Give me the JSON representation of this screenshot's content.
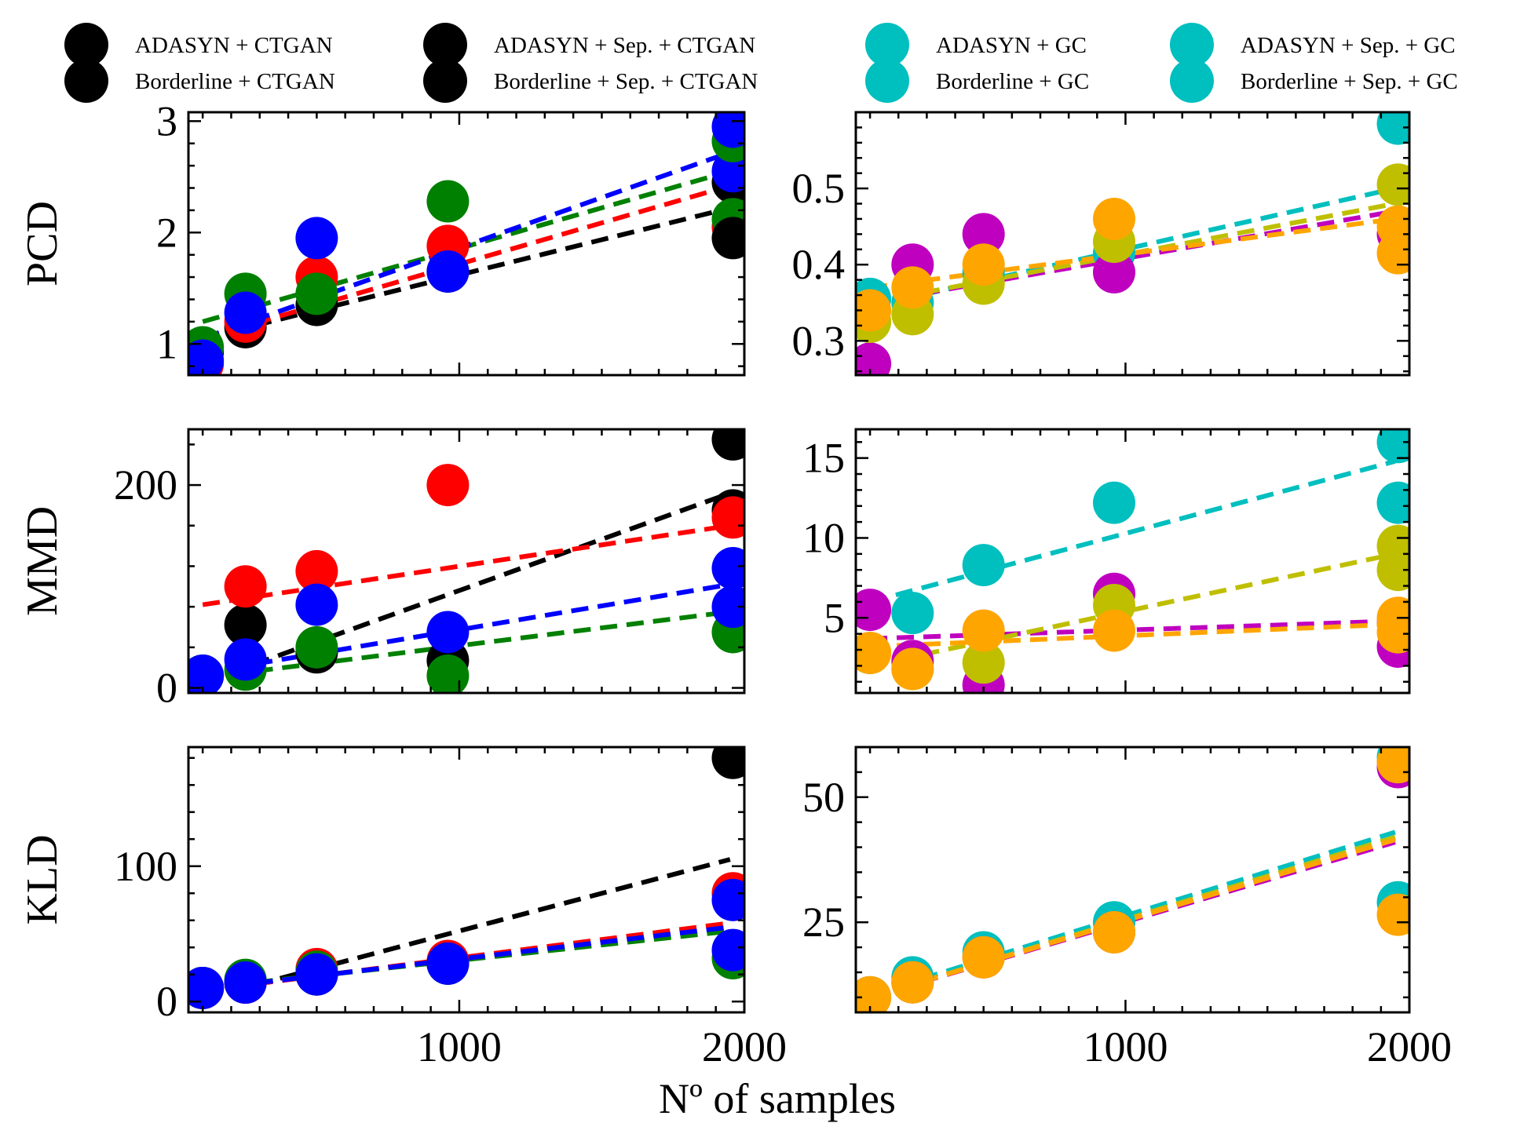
{
  "figure": {
    "xlabel": "Nº of samples"
  },
  "legend": [
    {
      "label": "ADASYN + CTGAN",
      "color": "#000000"
    },
    {
      "label": "Borderline + CTGAN",
      "color": "#000000"
    },
    {
      "label": "ADASYN + Sep. + CTGAN",
      "color": "#000000"
    },
    {
      "label": "Borderline + Sep. + CTGAN",
      "color": "#000000"
    },
    {
      "label": "ADASYN + GC",
      "color": "#00bfbf"
    },
    {
      "label": "Borderline + GC",
      "color": "#00bfbf"
    },
    {
      "label": "ADASYN + Sep. + GC",
      "color": "#00bfbf"
    },
    {
      "label": "Borderline + Sep. + GC",
      "color": "#00bfbf"
    }
  ],
  "chart_data": [
    {
      "id": "pcd_ctgan",
      "type": "scatter",
      "ylabel": "PCD",
      "xlim": [
        50,
        2000
      ],
      "ylim": [
        0.72,
        3.08
      ],
      "xticks": [
        1000,
        2000
      ],
      "xticklabels": [
        "",
        ""
      ],
      "yticks": [
        1,
        2,
        3
      ],
      "yticklabels": [
        "1",
        "2",
        "3"
      ],
      "grid": false,
      "series": [
        {
          "color": "#000000",
          "x": [
            100,
            250,
            500,
            1000,
            2000
          ],
          "y": [
            0.93,
            1.15,
            1.35,
            1.65,
            2.45
          ],
          "trend": {
            "x": [
              100,
              1950
            ],
            "y": [
              1.05,
              2.22
            ]
          }
        },
        {
          "color": "#ff0000",
          "x": [
            100,
            250,
            500,
            1000,
            2000
          ],
          "y": [
            0.82,
            1.2,
            1.6,
            1.88,
            2.05
          ],
          "trend": {
            "x": [
              100,
              1950
            ],
            "y": [
              1.05,
              2.42
            ]
          }
        },
        {
          "color": "#008000",
          "x": [
            100,
            250,
            500,
            1000,
            2000
          ],
          "y": [
            0.97,
            1.45,
            1.45,
            2.28,
            2.12
          ],
          "trend": {
            "x": [
              100,
              1950
            ],
            "y": [
              1.2,
              2.55
            ]
          }
        },
        {
          "color": "#0000ff",
          "x": [
            100,
            250,
            500,
            1000,
            2000
          ],
          "y": [
            0.85,
            1.28,
            1.95,
            1.65,
            2.55
          ],
          "trend": {
            "x": [
              100,
              1950
            ],
            "y": [
              1.05,
              2.72
            ]
          }
        }
      ],
      "extra_points": [
        {
          "color": "#000000",
          "x": 2000,
          "y": 1.95
        },
        {
          "color": "#008000",
          "x": 2000,
          "y": 2.82
        },
        {
          "color": "#0000ff",
          "x": 2000,
          "y": 2.95
        }
      ]
    },
    {
      "id": "pcd_gc",
      "type": "scatter",
      "ylabel": "",
      "xlim": [
        50,
        2000
      ],
      "ylim": [
        0.255,
        0.6
      ],
      "xticks": [
        1000,
        2000
      ],
      "xticklabels": [
        "",
        ""
      ],
      "yticks": [
        0.3,
        0.4,
        0.5
      ],
      "yticklabels": [
        "0.3",
        "0.4",
        "0.5"
      ],
      "grid": false,
      "series": [
        {
          "color": "#00bfbf",
          "x": [
            100,
            250,
            500,
            1000,
            2000
          ],
          "y": [
            0.355,
            0.35,
            0.39,
            0.415,
            0.585
          ],
          "trend": {
            "x": [
              100,
              1950
            ],
            "y": [
              0.345,
              0.5
            ]
          }
        },
        {
          "color": "#bf00bf",
          "x": [
            100,
            250,
            500,
            1000,
            2000
          ],
          "y": [
            0.27,
            0.4,
            0.44,
            0.39,
            0.44
          ],
          "trend": {
            "x": [
              100,
              1950
            ],
            "y": [
              0.35,
              0.47
            ]
          }
        },
        {
          "color": "#bfbf00",
          "x": [
            100,
            250,
            500,
            1000,
            2000
          ],
          "y": [
            0.325,
            0.335,
            0.375,
            0.43,
            0.505
          ],
          "trend": {
            "x": [
              100,
              1950
            ],
            "y": [
              0.35,
              0.48
            ]
          }
        },
        {
          "color": "#ffa500",
          "x": [
            100,
            250,
            500,
            1000,
            2000
          ],
          "y": [
            0.34,
            0.37,
            0.4,
            0.46,
            0.415
          ],
          "trend": {
            "x": [
              100,
              1950
            ],
            "y": [
              0.37,
              0.46
            ]
          }
        }
      ],
      "extra_points": [
        {
          "color": "#ffa500",
          "x": 2000,
          "y": 0.45
        }
      ]
    },
    {
      "id": "mmd_ctgan",
      "type": "scatter",
      "ylabel": "MMD",
      "xlim": [
        50,
        2000
      ],
      "ylim": [
        -5,
        255
      ],
      "xticks": [
        1000,
        2000
      ],
      "xticklabels": [
        "",
        ""
      ],
      "yticks": [
        0,
        200
      ],
      "yticklabels": [
        "0",
        "200"
      ],
      "grid": false,
      "series": [
        {
          "color": "#000000",
          "x": [
            100,
            250,
            500,
            1000,
            2000
          ],
          "y": [
            12,
            62,
            35,
            27,
            175
          ],
          "trend": {
            "x": [
              100,
              1950
            ],
            "y": [
              5,
              192
            ]
          }
        },
        {
          "color": "#ff0000",
          "x": [
            250,
            500,
            1000,
            2000
          ],
          "y": [
            100,
            115,
            200,
            168
          ],
          "trend": {
            "x": [
              100,
              1950
            ],
            "y": [
              82,
              160
            ]
          }
        },
        {
          "color": "#008000",
          "x": [
            100,
            250,
            500,
            1000,
            2000
          ],
          "y": [
            12,
            18,
            40,
            12,
            55
          ],
          "trend": {
            "x": [
              100,
              1950
            ],
            "y": [
              10,
              75
            ]
          }
        },
        {
          "color": "#0000ff",
          "x": [
            100,
            250,
            500,
            1000,
            2000
          ],
          "y": [
            12,
            28,
            82,
            55,
            118
          ],
          "trend": {
            "x": [
              100,
              1950
            ],
            "y": [
              15,
              102
            ]
          }
        }
      ],
      "extra_points": [
        {
          "color": "#000000",
          "x": 2000,
          "y": 245
        },
        {
          "color": "#0000ff",
          "x": 2000,
          "y": 80
        }
      ]
    },
    {
      "id": "mmd_gc",
      "type": "scatter",
      "ylabel": "",
      "xlim": [
        50,
        2000
      ],
      "ylim": [
        0.3,
        16.8
      ],
      "xticks": [
        1000,
        2000
      ],
      "xticklabels": [
        "",
        ""
      ],
      "yticks": [
        5,
        10,
        15
      ],
      "yticklabels": [
        "5",
        "10",
        "15"
      ],
      "grid": false,
      "series": [
        {
          "color": "#00bfbf",
          "x": [
            250,
            500,
            1000,
            2000
          ],
          "y": [
            5.3,
            8.3,
            12.2,
            16
          ],
          "trend": {
            "x": [
              100,
              1950
            ],
            "y": [
              6,
              14.8
            ]
          }
        },
        {
          "color": "#bf00bf",
          "x": [
            100,
            250,
            500,
            1000,
            2000
          ],
          "y": [
            5.5,
            2.3,
            0.8,
            6.5,
            3.2
          ],
          "trend": {
            "x": [
              100,
              1950
            ],
            "y": [
              3.7,
              4.8
            ]
          }
        },
        {
          "color": "#bfbf00",
          "x": [
            100,
            250,
            500,
            1000,
            2000
          ],
          "y": [
            2.8,
            1.8,
            2.2,
            5.8,
            9.5
          ],
          "trend": {
            "x": [
              100,
              1950
            ],
            "y": [
              2,
              9
            ]
          }
        },
        {
          "color": "#ffa500",
          "x": [
            100,
            250,
            500,
            1000,
            2000
          ],
          "y": [
            2.8,
            1.8,
            4.2,
            4.2,
            5.0
          ],
          "trend": {
            "x": [
              100,
              1950
            ],
            "y": [
              3.2,
              4.6
            ]
          }
        }
      ],
      "extra_points": [
        {
          "color": "#00bfbf",
          "x": 2000,
          "y": 12.2
        },
        {
          "color": "#bfbf00",
          "x": 2000,
          "y": 8.0
        },
        {
          "color": "#ffa500",
          "x": 2000,
          "y": 4.1
        }
      ]
    },
    {
      "id": "kld_ctgan",
      "type": "scatter",
      "ylabel": "KLD",
      "xlim": [
        50,
        2000
      ],
      "ylim": [
        -8,
        188
      ],
      "xticks": [
        1000,
        2000
      ],
      "xticklabels": [
        "1000",
        "2000"
      ],
      "yticks": [
        0,
        100
      ],
      "yticklabels": [
        "0",
        "100"
      ],
      "grid": false,
      "series": [
        {
          "color": "#000000",
          "x": [
            100,
            250,
            500,
            1000,
            2000
          ],
          "y": [
            10,
            14,
            20,
            28,
            180
          ],
          "trend": {
            "x": [
              100,
              1950
            ],
            "y": [
              2,
              105
            ]
          }
        },
        {
          "color": "#ff0000",
          "x": [
            100,
            250,
            500,
            1000,
            2000
          ],
          "y": [
            10,
            14,
            24,
            30,
            80
          ],
          "trend": {
            "x": [
              100,
              1950
            ],
            "y": [
              8,
              58
            ]
          }
        },
        {
          "color": "#008000",
          "x": [
            100,
            250,
            500,
            1000,
            2000
          ],
          "y": [
            10,
            16,
            22,
            28,
            32
          ],
          "trend": {
            "x": [
              100,
              1950
            ],
            "y": [
              10,
              52
            ]
          }
        },
        {
          "color": "#0000ff",
          "x": [
            100,
            250,
            500,
            1000,
            2000
          ],
          "y": [
            10,
            14,
            20,
            28,
            75
          ],
          "trend": {
            "x": [
              100,
              1950
            ],
            "y": [
              9,
              55
            ]
          }
        }
      ],
      "extra_points": [
        {
          "color": "#0000ff",
          "x": 2000,
          "y": 38
        }
      ]
    },
    {
      "id": "kld_gc",
      "type": "scatter",
      "ylabel": "",
      "xlim": [
        50,
        2000
      ],
      "ylim": [
        7,
        60
      ],
      "xticks": [
        1000,
        2000
      ],
      "xticklabels": [
        "1000",
        "2000"
      ],
      "yticks": [
        25,
        50
      ],
      "yticklabels": [
        "25",
        "50"
      ],
      "grid": false,
      "series": [
        {
          "color": "#00bfbf",
          "x": [
            100,
            250,
            500,
            1000,
            2000
          ],
          "y": [
            10,
            14,
            19,
            25,
            58
          ],
          "trend": {
            "x": [
              100,
              1950
            ],
            "y": [
              10.5,
              43
            ]
          }
        },
        {
          "color": "#bf00bf",
          "x": [
            100,
            250,
            500,
            1000,
            2000
          ],
          "y": [
            10,
            13,
            18,
            23,
            56
          ],
          "trend": {
            "x": [
              100,
              1950
            ],
            "y": [
              10,
              41
            ]
          }
        },
        {
          "color": "#bfbf00",
          "x": [
            100,
            250,
            500,
            1000,
            2000
          ],
          "y": [
            10,
            13,
            18,
            23,
            57
          ],
          "trend": {
            "x": [
              100,
              1950
            ],
            "y": [
              10,
              42
            ]
          }
        },
        {
          "color": "#ffa500",
          "x": [
            100,
            250,
            500,
            1000,
            2000
          ],
          "y": [
            10,
            13,
            18,
            23,
            57
          ],
          "trend": {
            "x": [
              100,
              1950
            ],
            "y": [
              10,
              41.5
            ]
          }
        }
      ],
      "extra_points": [
        {
          "color": "#00bfbf",
          "x": 2000,
          "y": 29
        },
        {
          "color": "#ffa500",
          "x": 2000,
          "y": 26.5
        }
      ]
    }
  ]
}
